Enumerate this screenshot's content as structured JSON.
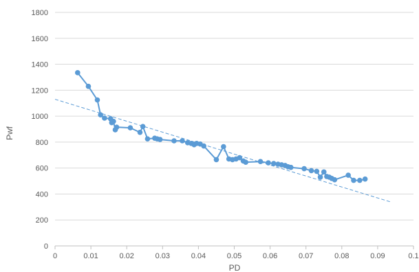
{
  "chart_data": {
    "type": "scatter",
    "xlabel": "PD",
    "ylabel": "Pwf",
    "xlim": [
      0,
      0.1
    ],
    "ylim": [
      0,
      1800
    ],
    "x_ticks": [
      "0",
      "0.01",
      "0.02",
      "0.03",
      "0.04",
      "0.05",
      "0.06",
      "0.07",
      "0.08",
      "0.09",
      "0.1"
    ],
    "y_ticks": [
      "0",
      "200",
      "400",
      "600",
      "800",
      "1000",
      "1200",
      "1400",
      "1600",
      "1800"
    ],
    "grid": "horizontal",
    "series": [
      {
        "style": "line-markers",
        "color": "#5B9BD5",
        "points": [
          [
            0.0063,
            1335
          ],
          [
            0.0093,
            1230
          ],
          [
            0.0118,
            1125
          ],
          [
            0.0127,
            1010
          ],
          [
            0.0138,
            985
          ],
          [
            0.0155,
            980
          ],
          [
            0.0158,
            950
          ],
          [
            0.0163,
            960
          ],
          [
            0.0168,
            895
          ],
          [
            0.0172,
            915
          ],
          [
            0.021,
            910
          ],
          [
            0.0237,
            875
          ],
          [
            0.0245,
            920
          ],
          [
            0.0258,
            825
          ],
          [
            0.0278,
            830
          ],
          [
            0.0285,
            825
          ],
          [
            0.0293,
            820
          ],
          [
            0.0332,
            810
          ],
          [
            0.0355,
            810
          ],
          [
            0.037,
            795
          ],
          [
            0.038,
            790
          ],
          [
            0.0388,
            780
          ],
          [
            0.0395,
            790
          ],
          [
            0.0405,
            785
          ],
          [
            0.0415,
            770
          ],
          [
            0.045,
            665
          ],
          [
            0.047,
            765
          ],
          [
            0.0485,
            670
          ],
          [
            0.0495,
            665
          ],
          [
            0.0505,
            670
          ],
          [
            0.0515,
            680
          ],
          [
            0.0525,
            655
          ],
          [
            0.0532,
            645
          ],
          [
            0.0573,
            650
          ],
          [
            0.0595,
            640
          ],
          [
            0.061,
            635
          ],
          [
            0.0622,
            630
          ],
          [
            0.0632,
            625
          ],
          [
            0.0642,
            620
          ],
          [
            0.065,
            610
          ],
          [
            0.0658,
            605
          ],
          [
            0.0695,
            595
          ],
          [
            0.0715,
            580
          ],
          [
            0.073,
            575
          ],
          [
            0.074,
            530
          ],
          [
            0.075,
            570
          ],
          [
            0.0758,
            535
          ],
          [
            0.0765,
            530
          ],
          [
            0.0772,
            520
          ],
          [
            0.078,
            510
          ],
          [
            0.0818,
            545
          ],
          [
            0.0833,
            505
          ],
          [
            0.085,
            505
          ],
          [
            0.0865,
            515
          ]
        ]
      },
      {
        "style": "dashed-trendline",
        "color": "#5B9BD5",
        "points": [
          [
            0,
            1130
          ],
          [
            0.0935,
            340
          ]
        ]
      }
    ]
  }
}
